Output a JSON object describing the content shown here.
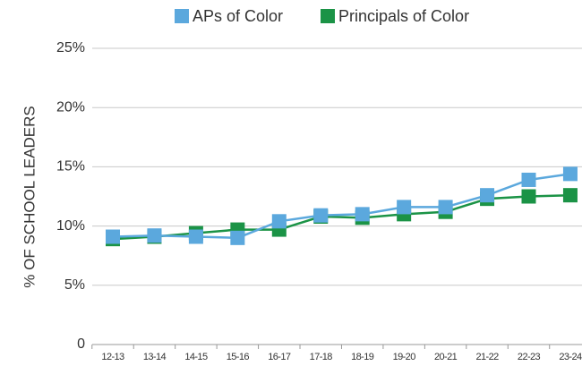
{
  "chart_data": {
    "type": "line",
    "y_label": "% OF SCHOOL LEADERS",
    "categories": [
      "12-13",
      "13-14",
      "14-15",
      "15-16",
      "16-17",
      "17-18",
      "18-19",
      "19-20",
      "20-21",
      "21-22",
      "22-23",
      "23-24"
    ],
    "series": [
      {
        "name": "APs of Color",
        "color": "#5ba8dd",
        "values": [
          9.1,
          9.2,
          9.1,
          9.0,
          10.4,
          10.9,
          11.0,
          11.6,
          11.6,
          12.6,
          13.9,
          14.4
        ]
      },
      {
        "name": "Principals of Color",
        "color": "#1b9346",
        "values": [
          8.9,
          9.1,
          9.4,
          9.7,
          9.7,
          10.8,
          10.7,
          11.0,
          11.2,
          12.3,
          12.5,
          12.6
        ]
      }
    ],
    "ylim": [
      0,
      25
    ],
    "yticks": [
      0,
      {
        "value": 5,
        "label": "5%"
      },
      {
        "value": 10,
        "label": "10%"
      },
      {
        "value": 15,
        "label": "15%"
      },
      {
        "value": 20,
        "label": "20%"
      },
      {
        "value": 25,
        "label": "25%"
      }
    ],
    "grid": true
  }
}
